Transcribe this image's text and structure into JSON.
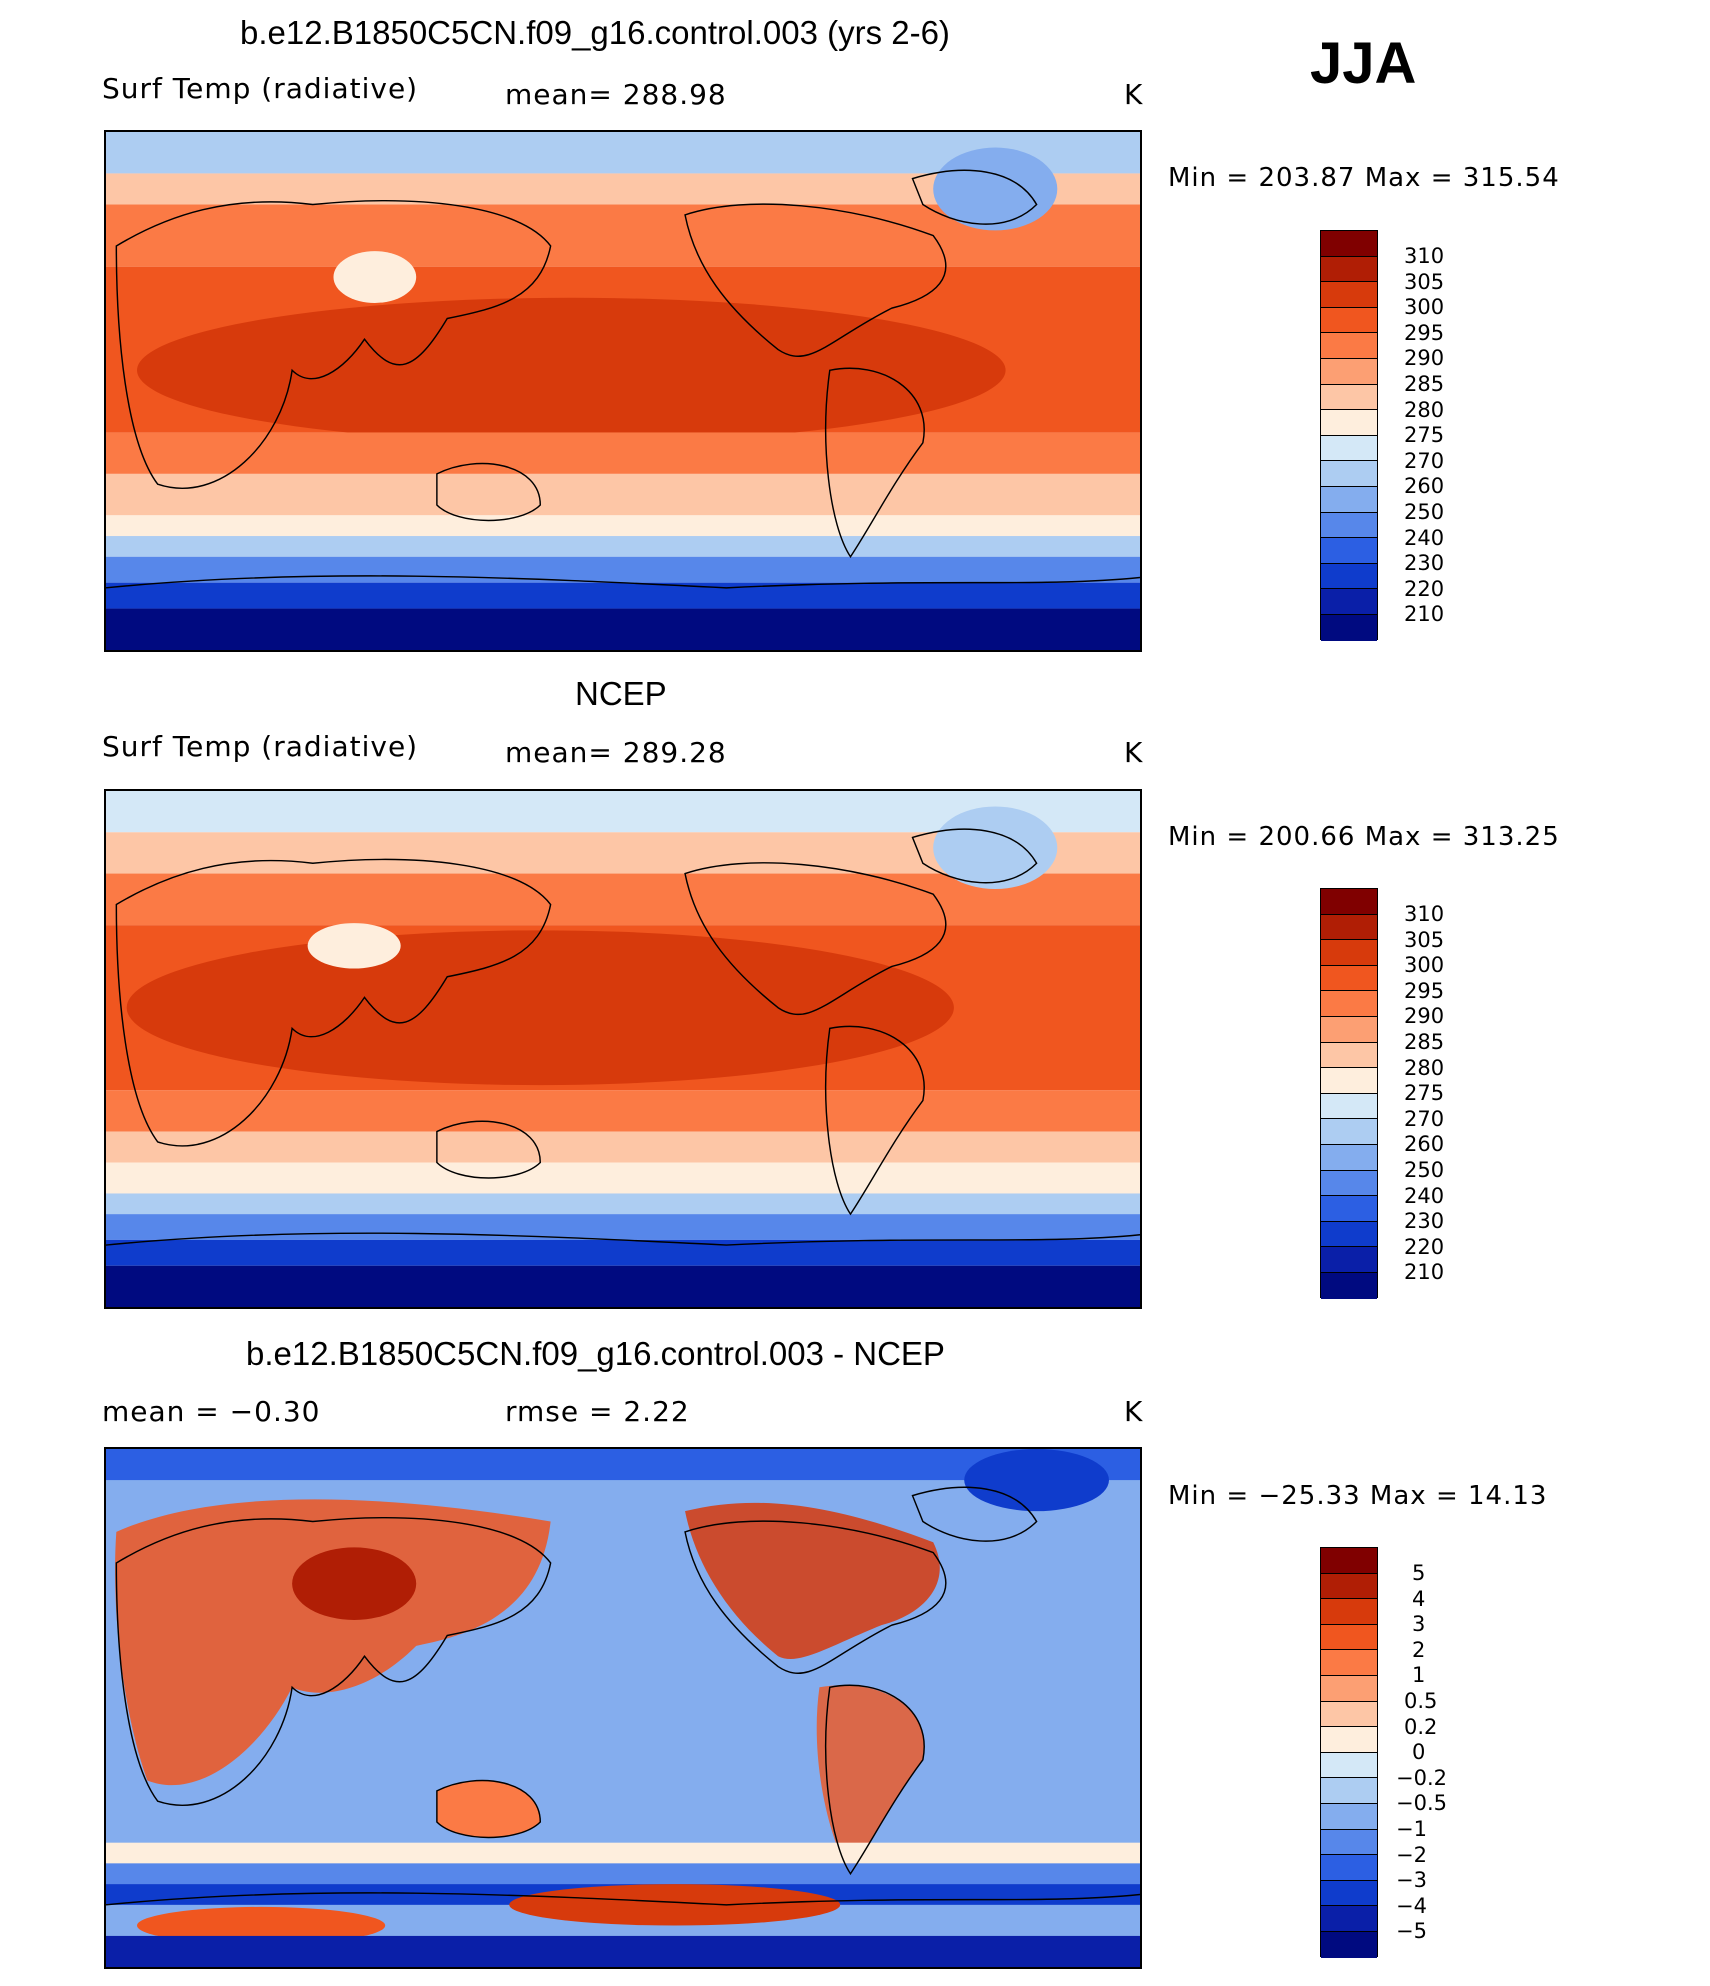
{
  "season": "JJA",
  "panels": [
    {
      "title": "b.e12.B1850C5CN.f09_g16.control.003 (yrs 2-6)",
      "left_label": "Surf Temp (radiative)",
      "center_label": "mean=  288.98",
      "units": "K",
      "minmax": "Min  =  203.87  Max  =  315.54",
      "colorbar_labels": [
        "310",
        "305",
        "300",
        "295",
        "290",
        "285",
        "280",
        "275",
        "270",
        "260",
        "250",
        "240",
        "230",
        "220",
        "210"
      ]
    },
    {
      "title": "NCEP",
      "left_label": "Surf Temp (radiative)",
      "center_label": "mean=  289.28",
      "units": "K",
      "minmax": "Min  =  200.66  Max  =  313.25",
      "colorbar_labels": [
        "310",
        "305",
        "300",
        "295",
        "290",
        "285",
        "280",
        "275",
        "270",
        "260",
        "250",
        "240",
        "230",
        "220",
        "210"
      ]
    },
    {
      "title": "b.e12.B1850C5CN.f09_g16.control.003 - NCEP",
      "left_label": "mean  =    −0.30",
      "center_label": "rmse  =     2.22",
      "units": "K",
      "minmax": "Min  =  −25.33  Max  =    14.13",
      "colorbar_labels": [
        "5",
        "4",
        "3",
        "2",
        "1",
        "0.5",
        "0.2",
        "0",
        "−0.2",
        "−0.5",
        "−1",
        "−2",
        "−3",
        "−4",
        "−5"
      ]
    }
  ],
  "colorbar_colors": [
    "#800000",
    "#b01e05",
    "#d73a0c",
    "#f0561f",
    "#fb7a45",
    "#fc9f73",
    "#fdc6a6",
    "#feeedd",
    "#d4e8f7",
    "#adcdf2",
    "#84adee",
    "#5787ea",
    "#2c5fe3",
    "#0f3ccc",
    "#0a1fa8",
    "#000a80"
  ]
}
